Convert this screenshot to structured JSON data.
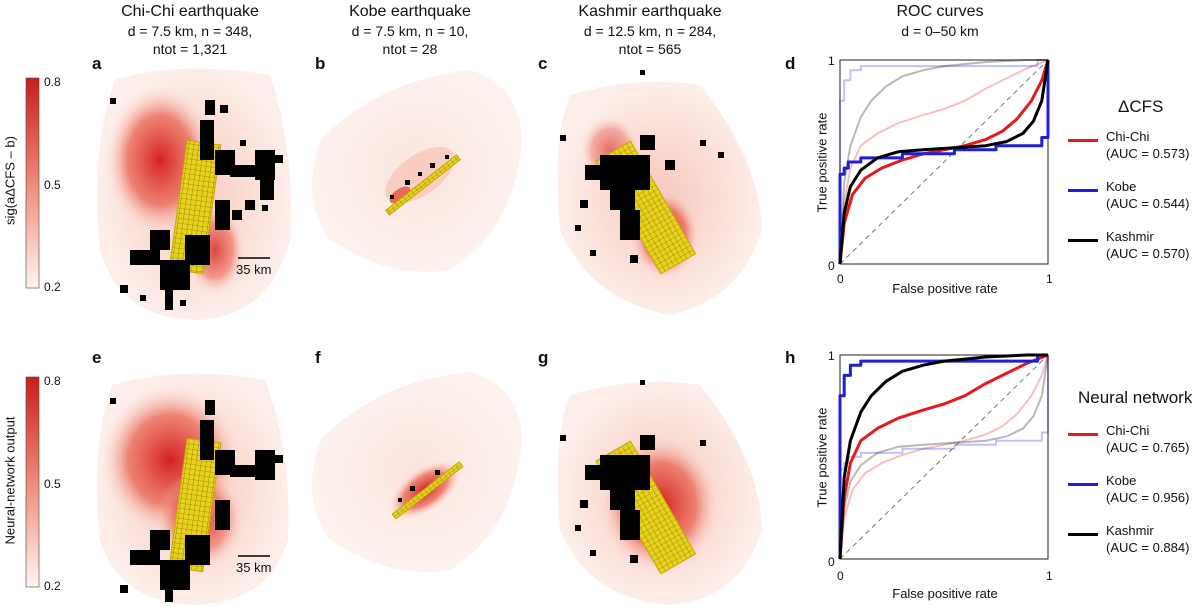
{
  "columns": [
    {
      "title": "Chi-Chi earthquake",
      "line1": "d = 7.5 km, n = 348,",
      "line2": "ntot = 1,321"
    },
    {
      "title": "Kobe earthquake",
      "line1": "d = 7.5 km, n = 10,",
      "line2": "ntot = 28"
    },
    {
      "title": "Kashmir earthquake",
      "line1": "d = 12.5 km, n = 284,",
      "line2": "ntot = 565"
    },
    {
      "title": "ROC curves",
      "line1": "d = 0–50 km",
      "line2": ""
    }
  ],
  "panel_letters": [
    "a",
    "b",
    "c",
    "d",
    "e",
    "f",
    "g",
    "h"
  ],
  "colorbars": [
    {
      "label": "sig(aΔCFS – b)",
      "ticks": [
        "0.8",
        "0.5",
        "0.2"
      ]
    },
    {
      "label": "Neural-network output",
      "ticks": [
        "0.8",
        "0.5",
        "0.2"
      ]
    }
  ],
  "scale_bar": "35 km",
  "colors": {
    "chichi": "#e41a1c",
    "kobe": "#1f1fd6",
    "kashmir": "#000000",
    "heat": "#d42020",
    "fault": "#e8d21d"
  },
  "chart_data": [
    {
      "type": "line",
      "title": "ROC curves (ΔCFS)",
      "xlabel": "False positive rate",
      "ylabel": "True positive rate",
      "xlim": [
        0,
        1
      ],
      "ylim": [
        0,
        1
      ],
      "ticks": {
        "x": [
          "0",
          "1"
        ],
        "y": [
          "0",
          "1"
        ]
      },
      "legend_title": "ΔCFS",
      "series": [
        {
          "name": "Chi-Chi",
          "auc": "(AUC = 0.573)",
          "color": "#e41a1c",
          "x": [
            0,
            0.02,
            0.06,
            0.12,
            0.2,
            0.3,
            0.4,
            0.5,
            0.6,
            0.7,
            0.78,
            0.85,
            0.92,
            0.97,
            1
          ],
          "y": [
            0,
            0.2,
            0.34,
            0.42,
            0.47,
            0.51,
            0.54,
            0.56,
            0.58,
            0.61,
            0.65,
            0.71,
            0.8,
            0.9,
            1
          ]
        },
        {
          "name": "Kobe",
          "auc": "(AUC = 0.544)",
          "color": "#1f1fd6",
          "x": [
            0,
            0.0,
            0.02,
            0.02,
            0.04,
            0.04,
            0.1,
            0.1,
            0.3,
            0.3,
            0.55,
            0.55,
            0.75,
            0.75,
            0.97,
            0.97,
            1,
            1
          ],
          "y": [
            0,
            0.44,
            0.44,
            0.47,
            0.47,
            0.5,
            0.5,
            0.52,
            0.52,
            0.54,
            0.54,
            0.56,
            0.56,
            0.58,
            0.58,
            0.62,
            0.62,
            1
          ]
        },
        {
          "name": "Kashmir",
          "auc": "(AUC = 0.570)",
          "color": "#000000",
          "x": [
            0,
            0.02,
            0.05,
            0.1,
            0.18,
            0.28,
            0.4,
            0.55,
            0.7,
            0.8,
            0.88,
            0.93,
            0.97,
            1
          ],
          "y": [
            0,
            0.25,
            0.38,
            0.46,
            0.52,
            0.55,
            0.56,
            0.57,
            0.58,
            0.6,
            0.64,
            0.7,
            0.8,
            1
          ]
        }
      ],
      "ghost_series": "faded curves show neural-network results"
    },
    {
      "type": "line",
      "title": "ROC curves (Neural network)",
      "xlabel": "False positive rate",
      "ylabel": "True positive rate",
      "xlim": [
        0,
        1
      ],
      "ylim": [
        0,
        1
      ],
      "ticks": {
        "x": [
          "0",
          "1"
        ],
        "y": [
          "0",
          "1"
        ]
      },
      "legend_title": "Neural network",
      "series": [
        {
          "name": "Chi-Chi",
          "auc": "(AUC = 0.765)",
          "color": "#e41a1c",
          "x": [
            0,
            0.02,
            0.05,
            0.1,
            0.18,
            0.28,
            0.4,
            0.5,
            0.6,
            0.7,
            0.8,
            0.9,
            1
          ],
          "y": [
            0,
            0.3,
            0.47,
            0.58,
            0.64,
            0.69,
            0.73,
            0.76,
            0.8,
            0.86,
            0.91,
            0.96,
            1
          ]
        },
        {
          "name": "Kobe",
          "auc": "(AUC = 0.956)",
          "color": "#1f1fd6",
          "x": [
            0,
            0.0,
            0.02,
            0.02,
            0.05,
            0.05,
            0.1,
            0.1,
            0.95,
            0.95,
            1
          ],
          "y": [
            0,
            0.8,
            0.8,
            0.9,
            0.9,
            0.95,
            0.95,
            0.97,
            0.97,
            1,
            1
          ]
        },
        {
          "name": "Kashmir",
          "auc": "(AUC = 0.884)",
          "color": "#000000",
          "x": [
            0,
            0.02,
            0.05,
            0.1,
            0.15,
            0.22,
            0.3,
            0.4,
            0.5,
            0.6,
            0.7,
            0.8,
            0.9,
            1
          ],
          "y": [
            0,
            0.4,
            0.58,
            0.72,
            0.8,
            0.87,
            0.92,
            0.95,
            0.97,
            0.98,
            0.99,
            0.995,
            1,
            1
          ]
        }
      ],
      "ghost_series": "faded curves show ΔCFS results"
    }
  ]
}
